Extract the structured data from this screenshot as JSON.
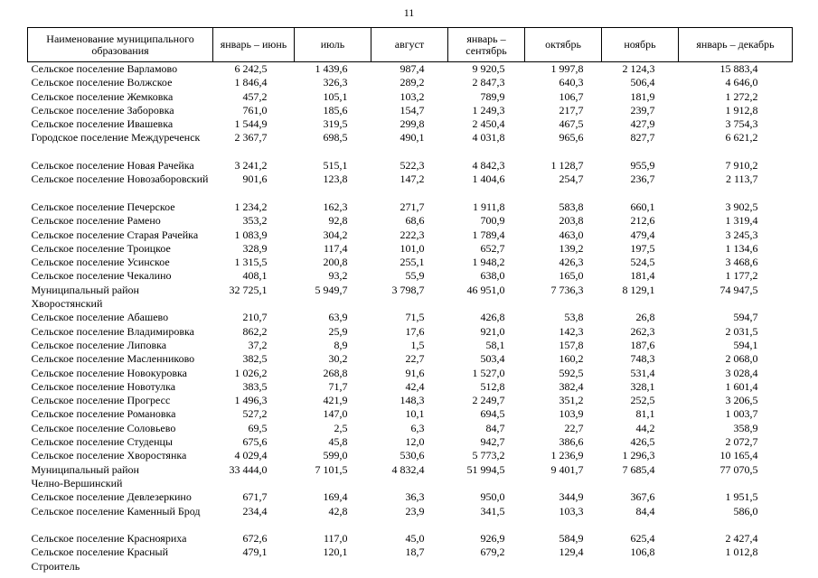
{
  "page": {
    "number": "11"
  },
  "table": {
    "headers": [
      "Наименование муниципального образования",
      "январь – июнь",
      "июль",
      "август",
      "январь – сентябрь",
      "октябрь",
      "ноябрь",
      "январь – декабрь"
    ],
    "rows": [
      {
        "name": "Сельское поселение Варламово",
        "values": [
          "6 242,5",
          "1 439,6",
          "987,4",
          "9 920,5",
          "1 997,8",
          "2 124,3",
          "15 883,4"
        ]
      },
      {
        "name": "Сельское поселение Волжское",
        "values": [
          "1 846,4",
          "326,3",
          "289,2",
          "2 847,3",
          "640,3",
          "506,4",
          "4 646,0"
        ]
      },
      {
        "name": "Сельское поселение Жемковка",
        "values": [
          "457,2",
          "105,1",
          "103,2",
          "789,9",
          "106,7",
          "181,9",
          "1 272,2"
        ]
      },
      {
        "name": "Сельское поселение Заборовка",
        "values": [
          "761,0",
          "185,6",
          "154,7",
          "1 249,3",
          "217,7",
          "239,7",
          "1 912,8"
        ]
      },
      {
        "name": "Сельское поселение Ивашевка",
        "values": [
          "1 544,9",
          "319,5",
          "299,8",
          "2 450,4",
          "467,5",
          "427,9",
          "3 754,3"
        ]
      },
      {
        "name": "Городское поселение Междуреченск",
        "values": [
          "2 367,7",
          "698,5",
          "490,1",
          "4 031,8",
          "965,6",
          "827,7",
          "6 621,2"
        ]
      },
      {
        "name": "",
        "values": [],
        "spacer": true
      },
      {
        "name": "Сельское поселение Новая Рачейка",
        "values": [
          "3 241,2",
          "515,1",
          "522,3",
          "4 842,3",
          "1 128,7",
          "955,9",
          "7 910,2"
        ]
      },
      {
        "name": "Сельское поселение Новозаборовский",
        "values": [
          "901,6",
          "123,8",
          "147,2",
          "1 404,6",
          "254,7",
          "236,7",
          "2 113,7"
        ]
      },
      {
        "name": "",
        "values": [],
        "spacer": true
      },
      {
        "name": "Сельское поселение Печерское",
        "values": [
          "1 234,2",
          "162,3",
          "271,7",
          "1 911,8",
          "583,8",
          "660,1",
          "3 902,5"
        ]
      },
      {
        "name": "Сельское поселение Рамено",
        "values": [
          "353,2",
          "92,8",
          "68,6",
          "700,9",
          "203,8",
          "212,6",
          "1 319,4"
        ]
      },
      {
        "name": "Сельское поселение Старая Рачейка",
        "values": [
          "1 083,9",
          "304,2",
          "222,3",
          "1 789,4",
          "463,0",
          "479,4",
          "3 245,3"
        ]
      },
      {
        "name": "Сельское поселение Троицкое",
        "values": [
          "328,9",
          "117,4",
          "101,0",
          "652,7",
          "139,2",
          "197,5",
          "1 134,6"
        ]
      },
      {
        "name": "Сельское поселение Усинское",
        "values": [
          "1 315,5",
          "200,8",
          "255,1",
          "1 948,2",
          "426,3",
          "524,5",
          "3 468,6"
        ]
      },
      {
        "name": "Сельское поселение Чекалино",
        "values": [
          "408,1",
          "93,2",
          "55,9",
          "638,0",
          "165,0",
          "181,4",
          "1 177,2"
        ]
      },
      {
        "name": "Муниципальный район\nХворостянский",
        "values": [
          "32 725,1",
          "5 949,7",
          "3 798,7",
          "46 951,0",
          "7 736,3",
          "8 129,1",
          "74 947,5"
        ]
      },
      {
        "name": "Сельское поселение Абашево",
        "values": [
          "210,7",
          "63,9",
          "71,5",
          "426,8",
          "53,8",
          "26,8",
          "594,7"
        ]
      },
      {
        "name": "Сельское поселение Владимировка",
        "values": [
          "862,2",
          "25,9",
          "17,6",
          "921,0",
          "142,3",
          "262,3",
          "2 031,5"
        ]
      },
      {
        "name": "Сельское поселение Липовка",
        "values": [
          "37,2",
          "8,9",
          "1,5",
          "58,1",
          "157,8",
          "187,6",
          "594,1"
        ]
      },
      {
        "name": "Сельское поселение Масленниково",
        "values": [
          "382,5",
          "30,2",
          "22,7",
          "503,4",
          "160,2",
          "748,3",
          "2 068,0"
        ]
      },
      {
        "name": "Сельское поселение Новокуровка",
        "values": [
          "1 026,2",
          "268,8",
          "91,6",
          "1 527,0",
          "592,5",
          "531,4",
          "3 028,4"
        ]
      },
      {
        "name": "Сельское поселение Новотулка",
        "values": [
          "383,5",
          "71,7",
          "42,4",
          "512,8",
          "382,4",
          "328,1",
          "1 601,4"
        ]
      },
      {
        "name": "Сельское поселение Прогресс",
        "values": [
          "1 496,3",
          "421,9",
          "148,3",
          "2 249,7",
          "351,2",
          "252,5",
          "3 206,5"
        ]
      },
      {
        "name": "Сельское поселение Романовка",
        "values": [
          "527,2",
          "147,0",
          "10,1",
          "694,5",
          "103,9",
          "81,1",
          "1 003,7"
        ]
      },
      {
        "name": "Сельское поселение Соловьево",
        "values": [
          "69,5",
          "2,5",
          "6,3",
          "84,7",
          "22,7",
          "44,2",
          "358,9"
        ]
      },
      {
        "name": "Сельское поселение Студенцы",
        "values": [
          "675,6",
          "45,8",
          "12,0",
          "942,7",
          "386,6",
          "426,5",
          "2 072,7"
        ]
      },
      {
        "name": "Сельское поселение Хворостянка",
        "values": [
          "4 029,4",
          "599,0",
          "530,6",
          "5 773,2",
          "1 236,9",
          "1 296,3",
          "10 165,4"
        ]
      },
      {
        "name": "Муниципальный район\nЧелно-Вершинский",
        "values": [
          "33 444,0",
          "7 101,5",
          "4 832,4",
          "51 994,5",
          "9 401,7",
          "7 685,4",
          "77 070,5"
        ]
      },
      {
        "name": "Сельское поселение Девлезеркино",
        "values": [
          "671,7",
          "169,4",
          "36,3",
          "950,0",
          "344,9",
          "367,6",
          "1 951,5"
        ]
      },
      {
        "name": "Сельское поселение Каменный Брод",
        "values": [
          "234,4",
          "42,8",
          "23,9",
          "341,5",
          "103,3",
          "84,4",
          "586,0"
        ]
      },
      {
        "name": "",
        "values": [],
        "spacer": true
      },
      {
        "name": "Сельское поселение Краснояриха",
        "values": [
          "672,6",
          "117,0",
          "45,0",
          "926,9",
          "584,9",
          "625,4",
          "2 427,4"
        ]
      },
      {
        "name": "Сельское поселение Красный\nСтроитель",
        "values": [
          "479,1",
          "120,1",
          "18,7",
          "679,2",
          "129,4",
          "106,8",
          "1 012,8"
        ]
      }
    ]
  }
}
